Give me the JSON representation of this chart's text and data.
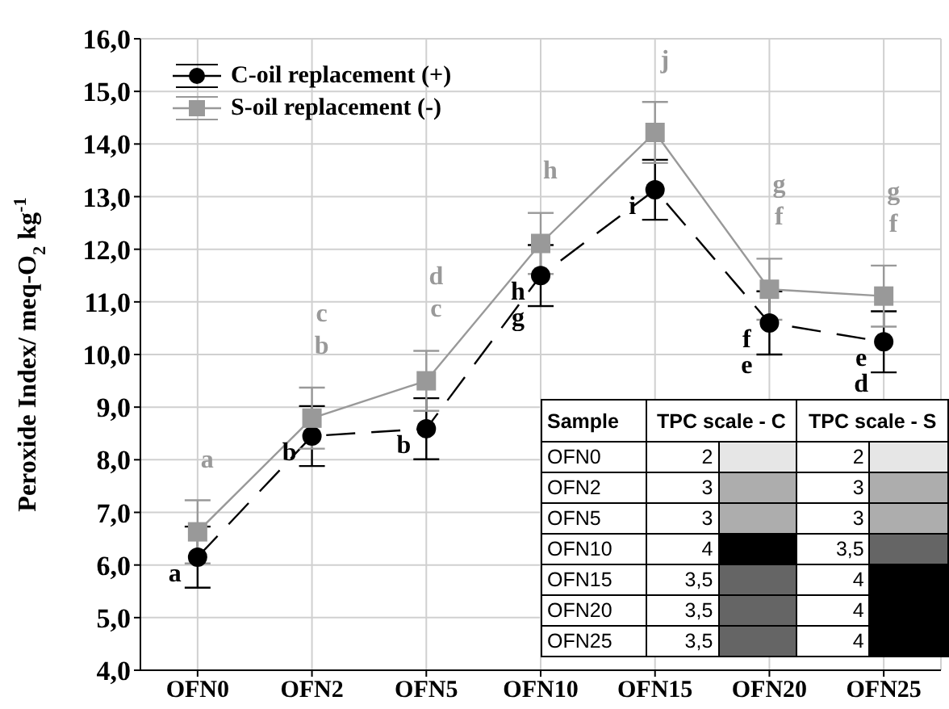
{
  "chart_data": [
    {
      "type": "line",
      "ylabel": "Peroxide Index/ meq-O$_{2}$ kg$^{-1}$",
      "categories": [
        "OFN0",
        "OFN2",
        "OFN5",
        "OFN10",
        "OFN15",
        "OFN20",
        "OFN25"
      ],
      "series": [
        {
          "name": "C-oil replacement (+)",
          "color": "#000000",
          "marker": "circle",
          "line_style": "dashed",
          "values": [
            6.15,
            8.45,
            8.59,
            11.5,
            13.13,
            10.6,
            10.24
          ],
          "errors": [
            0.58,
            0.57,
            0.58,
            0.58,
            0.57,
            0.6,
            0.58
          ],
          "value_labels": [
            "a",
            "b",
            "b",
            "h\ng",
            "i",
            "f\ne",
            "e\nd"
          ]
        },
        {
          "name": "S-oil replacement (-)",
          "color": "#999999",
          "marker": "square",
          "line_style": "solid",
          "values": [
            6.63,
            8.79,
            9.5,
            12.11,
            14.22,
            11.24,
            11.11
          ],
          "errors": [
            0.6,
            0.58,
            0.57,
            0.58,
            0.58,
            0.58,
            0.58
          ],
          "value_labels": [
            "a",
            "c\nb",
            "d\nc",
            "h",
            "j",
            "g\nf",
            "g\nf"
          ]
        }
      ],
      "ylim": [
        4,
        16
      ],
      "yticks": [
        {
          "value": 4,
          "label": "4,0"
        },
        {
          "value": 5,
          "label": "5,0"
        },
        {
          "value": 6,
          "label": "6,0"
        },
        {
          "value": 7,
          "label": "7,0"
        },
        {
          "value": 8,
          "label": "8,0"
        },
        {
          "value": 9,
          "label": "9,0"
        },
        {
          "value": 10,
          "label": "10,0"
        },
        {
          "value": 11,
          "label": "11,0"
        },
        {
          "value": 12,
          "label": "12,0"
        },
        {
          "value": 13,
          "label": "13,0"
        },
        {
          "value": 14,
          "label": "14,0"
        },
        {
          "value": 15,
          "label": "15,0"
        },
        {
          "value": 16,
          "label": "16,0"
        }
      ],
      "grid": true,
      "legend": "top left"
    },
    {
      "type": "heatmap",
      "ylabel": "Sample",
      "categories": [
        "TPC scale - C",
        "TPC scale - S"
      ],
      "y_categories": [
        "OFN0",
        "OFN2",
        "OFN5",
        "OFN10",
        "OFN15",
        "OFN20",
        "OFN25"
      ],
      "cells": [
        [
          2,
          2
        ],
        [
          3,
          3
        ],
        [
          3,
          3
        ],
        [
          4,
          3.5
        ],
        [
          3.5,
          4
        ],
        [
          3.5,
          4
        ],
        [
          3.5,
          4
        ]
      ],
      "cell_labels": [
        [
          "2",
          "2"
        ],
        [
          "3",
          "3"
        ],
        [
          "3",
          "3"
        ],
        [
          "4",
          "3,5"
        ],
        [
          "3,5",
          "4"
        ],
        [
          "3,5",
          "4"
        ],
        [
          "3,5",
          "4"
        ]
      ]
    }
  ]
}
